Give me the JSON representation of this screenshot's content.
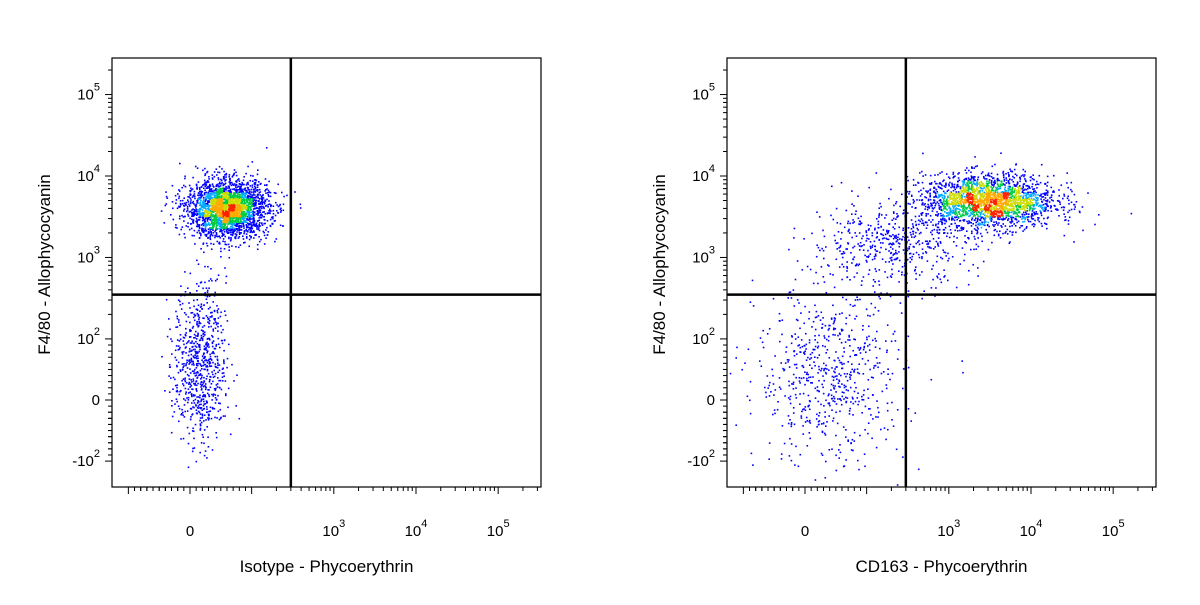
{
  "chart_data": [
    {
      "type": "scatter",
      "style": "density dot plot",
      "xlabel": "Isotype - Phycoerythrin",
      "ylabel": "F4/80 - Allophycocyanin",
      "x_scale": "biexponential",
      "y_scale": "biexponential",
      "x_tick_labels": [
        {
          "value": 0,
          "base": "0",
          "exp": ""
        },
        {
          "value": 1000,
          "base": "10",
          "exp": "3"
        },
        {
          "value": 10000,
          "base": "10",
          "exp": "4"
        },
        {
          "value": 100000,
          "base": "10",
          "exp": "5"
        }
      ],
      "y_tick_labels": [
        {
          "value": -100,
          "base": "-10",
          "exp": "2"
        },
        {
          "value": 0,
          "base": "0",
          "exp": ""
        },
        {
          "value": 100,
          "base": "10",
          "exp": "2"
        },
        {
          "value": 1000,
          "base": "10",
          "exp": "3"
        },
        {
          "value": 10000,
          "base": "10",
          "exp": "4"
        },
        {
          "value": 100000,
          "base": "10",
          "exp": "5"
        }
      ],
      "quadrant_gate": {
        "x": 300,
        "y": 350
      },
      "populations": [
        {
          "name": "",
          "x_center": 60,
          "y_center": 4000,
          "x_spread": 0.55,
          "y_spread": 0.32,
          "count": 2600
        },
        {
          "name": "",
          "x_center": 15,
          "y_center": 60,
          "x_spread": 0.35,
          "y_spread": 0.9,
          "count": 750
        }
      ],
      "density_colors": [
        "#0000ff",
        "#00aaff",
        "#00cc44",
        "#ccdd00",
        "#ffaa00",
        "#ff2200"
      ]
    },
    {
      "type": "scatter",
      "style": "density dot plot",
      "xlabel": "CD163 - Phycoerythrin",
      "ylabel": "F4/80 - Allophycocyanin",
      "x_scale": "biexponential",
      "y_scale": "biexponential",
      "x_tick_labels": [
        {
          "value": 0,
          "base": "0",
          "exp": ""
        },
        {
          "value": 1000,
          "base": "10",
          "exp": "3"
        },
        {
          "value": 10000,
          "base": "10",
          "exp": "4"
        },
        {
          "value": 100000,
          "base": "10",
          "exp": "5"
        }
      ],
      "y_tick_labels": [
        {
          "value": -100,
          "base": "-10",
          "exp": "2"
        },
        {
          "value": 0,
          "base": "0",
          "exp": ""
        },
        {
          "value": 100,
          "base": "10",
          "exp": "2"
        },
        {
          "value": 1000,
          "base": "10",
          "exp": "3"
        },
        {
          "value": 10000,
          "base": "10",
          "exp": "4"
        },
        {
          "value": 100000,
          "base": "10",
          "exp": "5"
        }
      ],
      "quadrant_gate": {
        "x": 300,
        "y": 350
      },
      "populations": [
        {
          "name": "",
          "x_center": 3000,
          "y_center": 5000,
          "x_spread": 0.9,
          "y_spread": 0.3,
          "count": 2200
        },
        {
          "name": "",
          "x_center": 200,
          "y_center": 1500,
          "x_spread": 1.1,
          "y_spread": 0.45,
          "count": 500
        },
        {
          "name": "",
          "x_center": 40,
          "y_center": 40,
          "x_spread": 1.0,
          "y_spread": 1.0,
          "count": 650
        }
      ],
      "density_colors": [
        "#0000ff",
        "#00aaff",
        "#00cc44",
        "#ccdd00",
        "#ffaa00",
        "#ff2200"
      ]
    }
  ]
}
